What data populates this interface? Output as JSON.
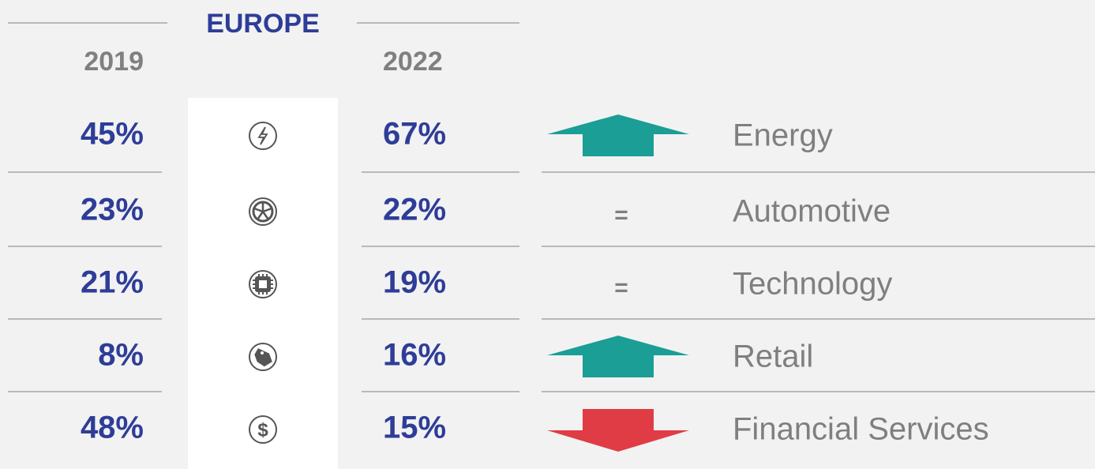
{
  "header": {
    "title": "EUROPE",
    "year_a": "2019",
    "year_b": "2022"
  },
  "rows": [
    {
      "a": "45%",
      "b": "67%",
      "trend": "up",
      "label": "Energy"
    },
    {
      "a": "23%",
      "b": "22%",
      "trend": "=",
      "label": "Automotive"
    },
    {
      "a": "21%",
      "b": "19%",
      "trend": "=",
      "label": "Technology"
    },
    {
      "a": "8%",
      "b": "16%",
      "trend": "up",
      "label": "Retail"
    },
    {
      "a": "48%",
      "b": "15%",
      "trend": "down",
      "label": "Financial Services"
    }
  ],
  "colors": {
    "up": "#1a9e96",
    "down": "#e03c45"
  }
}
